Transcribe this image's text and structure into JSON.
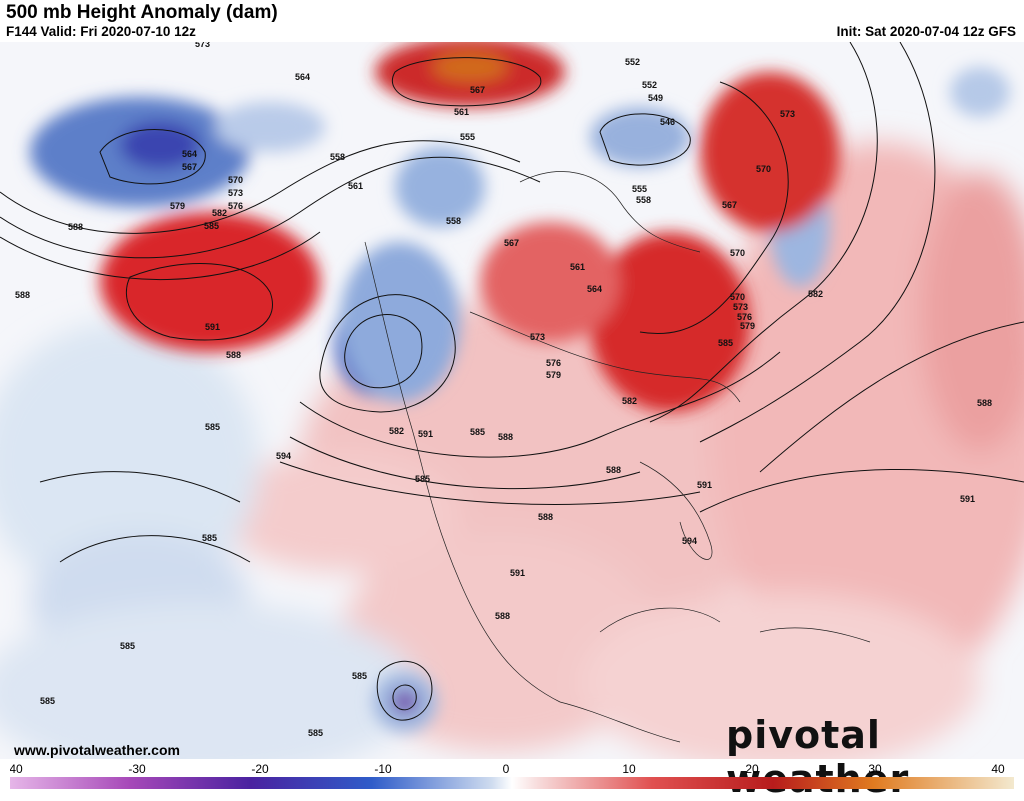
{
  "header": {
    "title": "500 mb Height Anomaly (dam)",
    "valid": "F144 Valid: Fri 2020-07-10 12z",
    "init": "Init: Sat 2020-07-04 12z GFS"
  },
  "footer": {
    "website": "www.pivotalweather.com",
    "brand": "pivotal weather"
  },
  "colorbar": {
    "ticks": [
      "-40",
      "-30",
      "-20",
      "-10",
      "0",
      "10",
      "20",
      "30",
      "40"
    ],
    "min": -40,
    "max": 40
  },
  "map": {
    "contour_labels": [
      "573",
      "564",
      "564",
      "567",
      "570",
      "573",
      "576",
      "579",
      "582",
      "585",
      "588",
      "591",
      "588",
      "558",
      "561",
      "567",
      "561",
      "555",
      "558",
      "552",
      "552",
      "549",
      "546",
      "555",
      "558",
      "567",
      "570",
      "573",
      "570",
      "567",
      "561",
      "564",
      "573",
      "576",
      "579",
      "570",
      "573",
      "576",
      "579",
      "582",
      "585",
      "582",
      "588",
      "585",
      "585",
      "591",
      "582",
      "588",
      "594",
      "588",
      "591",
      "588",
      "594",
      "591",
      "585",
      "585",
      "591",
      "588",
      "585",
      "585",
      "585",
      "585",
      "588"
    ]
  }
}
